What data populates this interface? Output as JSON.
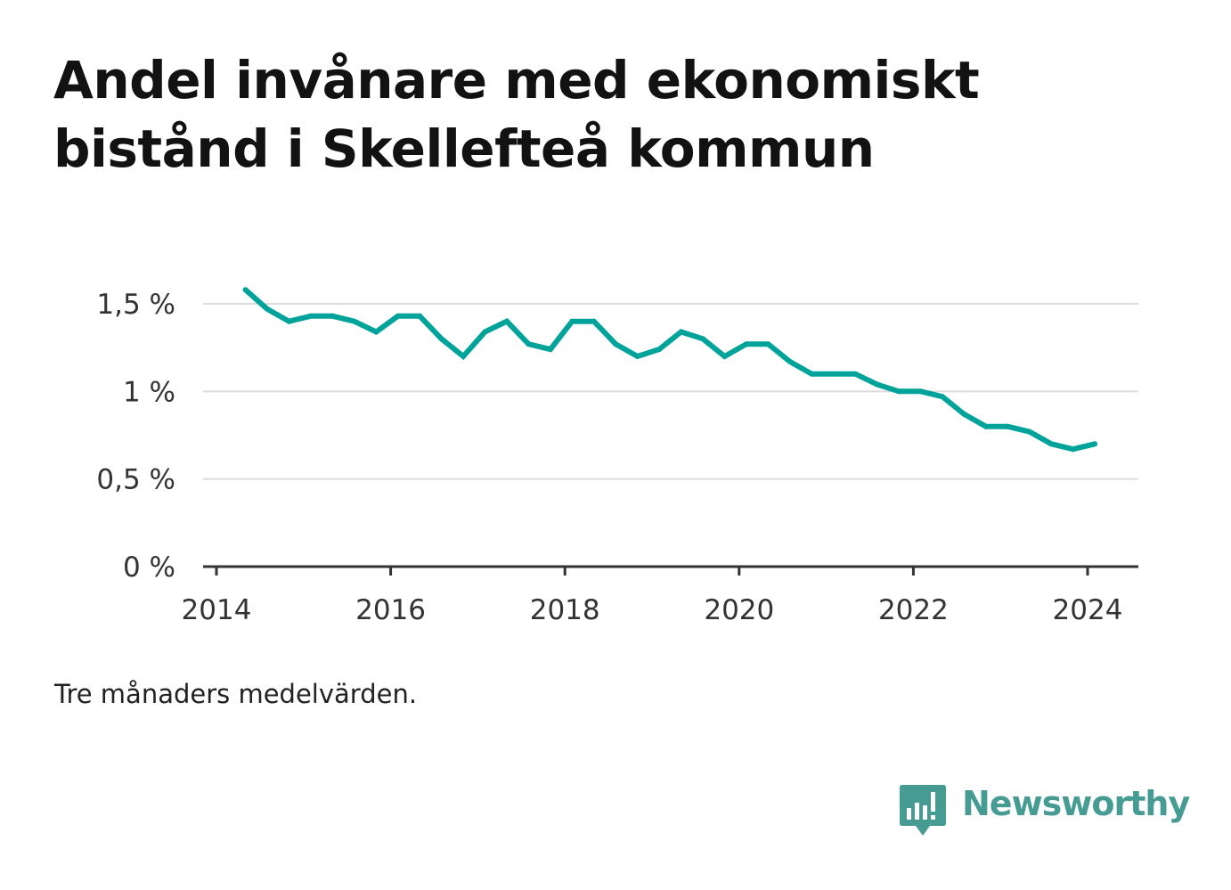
{
  "title": "Andel invånare med ekonomiskt bistånd i Skellefteå kommun",
  "note": "Tre månaders medelvärden.",
  "brand": {
    "name": "Newsworthy",
    "color": "#469b93",
    "icon": "bar-chart-speech-bubble-icon"
  },
  "chart_data": {
    "type": "line",
    "title": "Andel invånare med ekonomiskt bistånd i Skellefteå kommun",
    "xlabel": "",
    "ylabel": "",
    "xlim": [
      2014.0,
      2024.6
    ],
    "ylim": [
      0,
      1.5
    ],
    "grid": true,
    "line_color": "#00a39a",
    "x_ticks": [
      {
        "value": 2014,
        "label": "2014"
      },
      {
        "value": 2016,
        "label": "2016"
      },
      {
        "value": 2018,
        "label": "2018"
      },
      {
        "value": 2020,
        "label": "2020"
      },
      {
        "value": 2022,
        "label": "2022"
      },
      {
        "value": 2024,
        "label": "2024"
      }
    ],
    "y_ticks": [
      {
        "value": 0,
        "label": "0 %"
      },
      {
        "value": 0.5,
        "label": "0,5 %"
      },
      {
        "value": 1,
        "label": "1 %"
      },
      {
        "value": 1.5,
        "label": "1,5 %"
      }
    ],
    "series": [
      {
        "x": [
          "2014-05",
          "2014-08",
          "2014-11",
          "2015-02",
          "2015-05",
          "2015-08",
          "2015-11",
          "2016-02",
          "2016-05",
          "2016-08",
          "2016-11",
          "2017-02",
          "2017-05",
          "2017-08",
          "2017-11",
          "2018-02",
          "2018-05",
          "2018-08",
          "2018-11",
          "2019-02",
          "2019-05",
          "2019-08",
          "2019-11",
          "2020-02",
          "2020-05",
          "2020-08",
          "2020-11",
          "2021-02",
          "2021-05",
          "2021-08",
          "2021-11",
          "2022-02",
          "2022-05",
          "2022-08",
          "2022-11",
          "2023-02",
          "2023-05",
          "2023-08",
          "2023-11",
          "2024-02"
        ],
        "values": [
          1.58,
          1.47,
          1.4,
          1.43,
          1.43,
          1.4,
          1.34,
          1.43,
          1.43,
          1.3,
          1.2,
          1.34,
          1.4,
          1.27,
          1.24,
          1.4,
          1.4,
          1.27,
          1.2,
          1.24,
          1.34,
          1.3,
          1.2,
          1.27,
          1.27,
          1.17,
          1.1,
          1.1,
          1.1,
          1.04,
          1.0,
          1.0,
          0.97,
          0.87,
          0.8,
          0.8,
          0.77,
          0.7,
          0.67,
          0.7
        ]
      }
    ]
  }
}
